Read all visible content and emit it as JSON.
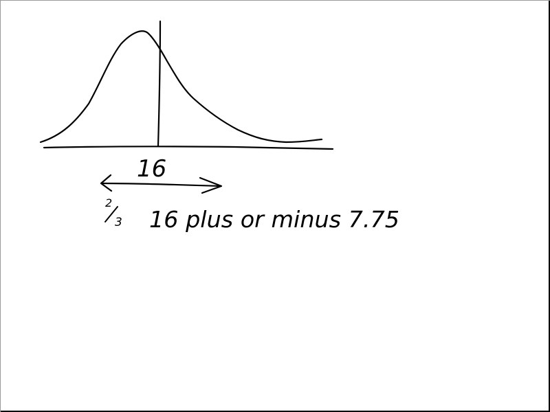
{
  "ink_color": "#000000",
  "background_color": "#ffffff",
  "annotations": {
    "center_label": "16",
    "fraction_label": "2/3",
    "fraction_numerator": "2",
    "fraction_denominator": "3",
    "statement": "16 plus or minus 7.75"
  }
}
